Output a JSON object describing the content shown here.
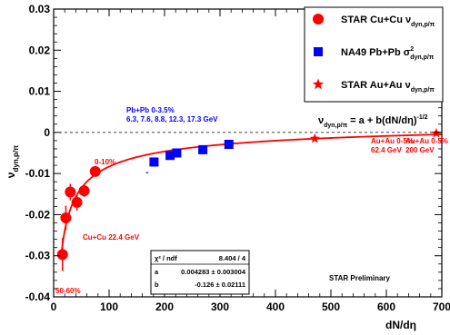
{
  "chart_data": {
    "type": "scatter",
    "xlabel": "dN/dη",
    "ylabel": "ν",
    "ylabel_sub": "dyn,p/π",
    "xlim": [
      0,
      700
    ],
    "ylim": [
      -0.04,
      0.03
    ],
    "x_ticks": [
      "0",
      "100",
      "200",
      "300",
      "400",
      "500",
      "600",
      "700"
    ],
    "y_ticks": [
      "-0.04",
      "-0.03",
      "-0.02",
      "-0.01",
      "0",
      "0.01",
      "0.02",
      "0.03"
    ],
    "reference_line_y": 0,
    "series": [
      {
        "name": "STAR Cu+Cu ν",
        "name_sub": "dyn,p/π",
        "color": "#ff0000",
        "marker": "circle",
        "points": [
          {
            "x": 16,
            "y": -0.0297,
            "err": 0.004
          },
          {
            "x": 22,
            "y": -0.0208,
            "err": 0.003
          },
          {
            "x": 30,
            "y": -0.0145,
            "err": 0.002
          },
          {
            "x": 42,
            "y": -0.017,
            "err": 0.002
          },
          {
            "x": 55,
            "y": -0.0142,
            "err": 0.0015
          },
          {
            "x": 75,
            "y": -0.0095,
            "err": 0.001
          }
        ]
      },
      {
        "name": "NA49 Pb+Pb σ",
        "name_sup": "2",
        "name_sub": "dyn,p/π",
        "color": "#0000ff",
        "marker": "square",
        "points": [
          {
            "x": 181,
            "y": -0.0072,
            "err": 0.0006
          },
          {
            "x": 210,
            "y": -0.0056,
            "err": 0.0005
          },
          {
            "x": 222,
            "y": -0.005,
            "err": 0.0005
          },
          {
            "x": 269,
            "y": -0.0042,
            "err": 0.0004
          },
          {
            "x": 316,
            "y": -0.0029,
            "err": 0.0004
          }
        ]
      },
      {
        "name": "STAR Au+Au ν",
        "name_sub": "dyn,p/π",
        "color": "#ff0000",
        "marker": "star",
        "points": [
          {
            "x": 471,
            "y": -0.0015,
            "err": 0.0003
          },
          {
            "x": 690,
            "y": -0.0002,
            "err": 0.0003
          }
        ]
      }
    ],
    "fit": {
      "formula_main": "ν",
      "formula_sub": "dyn,p/π",
      "formula_rest": " = a + b(dN/dη)",
      "formula_sup": "-1/2",
      "color": "#ff0000",
      "a": 0.004283,
      "b": -0.126,
      "x_start": 14,
      "x_end": 700
    },
    "stats_box": {
      "rows": [
        {
          "label": "χ² / ndf",
          "value": "8.404 / 4"
        },
        {
          "label": "a",
          "value": "0.004283 ± 0.003004"
        },
        {
          "label": "b",
          "value": "-0.126 ± 0.02111"
        }
      ]
    },
    "annotations": {
      "pbpb_title": "Pb+Pb 0-3.5%",
      "pbpb_energies": "6.3, 7.6, 8.8, 12.3, 17.3 GeV",
      "cucu_central": "0-10%",
      "cucu_energy": "Cu+Cu 22.4 GeV",
      "cucu_peripheral": "50-60%",
      "auau62_line1": "Au+Au 0-5%",
      "auau62_line2": "62.4 GeV",
      "auau200_line1": "Au+Au 0-5%",
      "auau200_line2": "200 GeV",
      "preliminary": "STAR Preliminary",
      "pbpb_marker_glyph": "ˇ"
    }
  }
}
